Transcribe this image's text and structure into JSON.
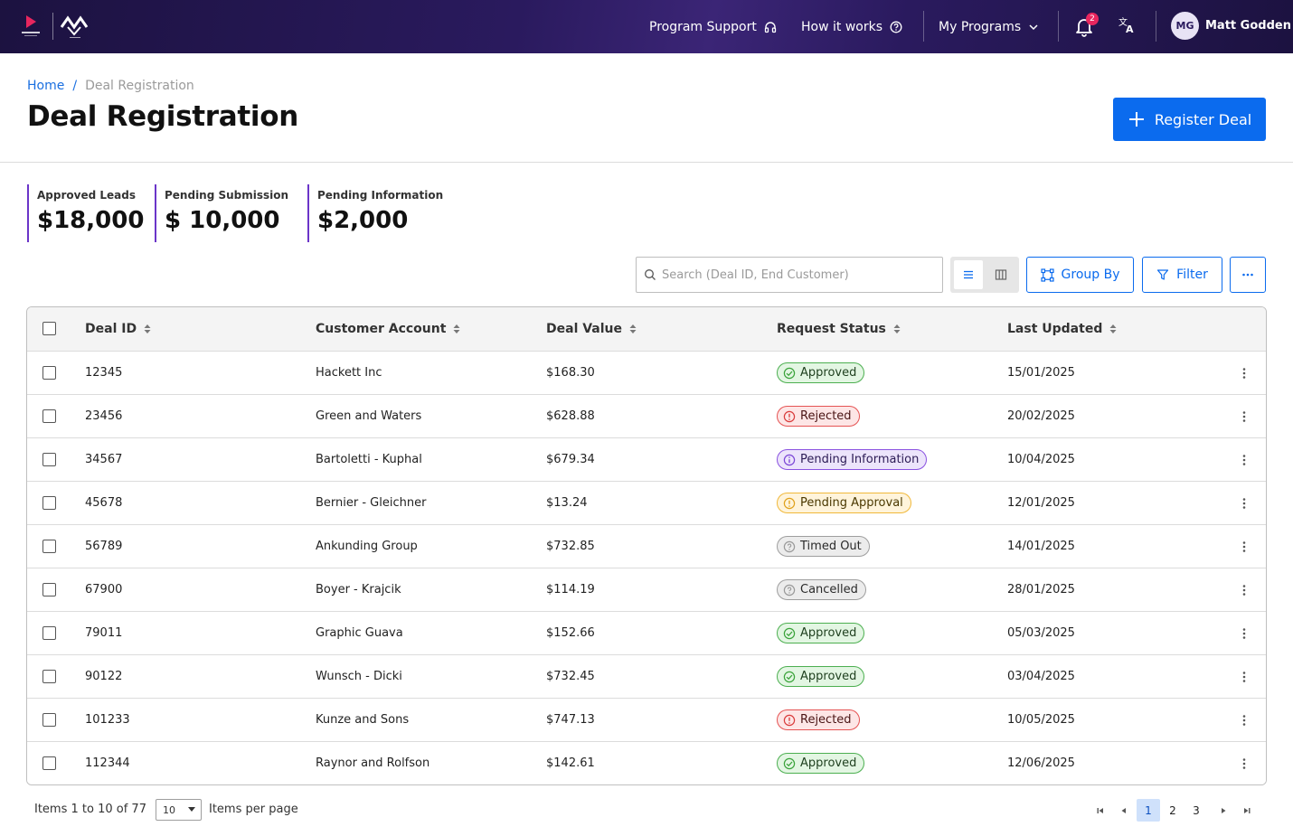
{
  "nav": {
    "program_support": "Program Support",
    "how_it_works": "How it works",
    "my_programs": "My Programs",
    "notification_count": "2",
    "avatar_initials": "MG",
    "user_name": "Matt Godden"
  },
  "breadcrumb": {
    "home": "Home",
    "separator": "/",
    "current": "Deal Registration"
  },
  "page_title": "Deal Registration",
  "register_button": "Register Deal",
  "stats": [
    {
      "label": "Approved Leads",
      "value": "$18,000"
    },
    {
      "label": "Pending Submission",
      "value": "$ 10,000"
    },
    {
      "label": "Pending Information",
      "value": "$2,000"
    }
  ],
  "toolbar": {
    "search_placeholder": "Search (Deal ID, End Customer)",
    "group_by": "Group By",
    "filter": "Filter"
  },
  "table": {
    "columns": [
      "Deal ID",
      "Customer Account",
      "Deal Value",
      "Request Status",
      "Last Updated"
    ],
    "rows": [
      {
        "id": "12345",
        "customer": "Hackett Inc",
        "value": "$168.30",
        "status": "Approved",
        "status_type": "approved",
        "updated": "15/01/2025"
      },
      {
        "id": "23456",
        "customer": "Green and Waters",
        "value": "$628.88",
        "status": "Rejected",
        "status_type": "rejected",
        "updated": "20/02/2025"
      },
      {
        "id": "34567",
        "customer": "Bartoletti - Kuphal",
        "value": "$679.34",
        "status": "Pending Information",
        "status_type": "info",
        "updated": "10/04/2025"
      },
      {
        "id": "45678",
        "customer": "Bernier - Gleichner",
        "value": "$13.24",
        "status": "Pending Approval",
        "status_type": "pending",
        "updated": "12/01/2025"
      },
      {
        "id": "56789",
        "customer": "Ankunding Group",
        "value": "$732.85",
        "status": "Timed Out",
        "status_type": "grey",
        "updated": "14/01/2025"
      },
      {
        "id": "67900",
        "customer": "Boyer - Krajcik",
        "value": "$114.19",
        "status": "Cancelled",
        "status_type": "grey",
        "updated": "28/01/2025"
      },
      {
        "id": "79011",
        "customer": "Graphic Guava",
        "value": "$152.66",
        "status": "Approved",
        "status_type": "approved",
        "updated": "05/03/2025"
      },
      {
        "id": "90122",
        "customer": "Wunsch - Dicki",
        "value": "$732.45",
        "status": "Approved",
        "status_type": "approved",
        "updated": "03/04/2025"
      },
      {
        "id": "101233",
        "customer": "Kunze and Sons",
        "value": "$747.13",
        "status": "Rejected",
        "status_type": "rejected",
        "updated": "10/05/2025"
      },
      {
        "id": "112344",
        "customer": "Raynor and Rolfson",
        "value": "$142.61",
        "status": "Approved",
        "status_type": "approved",
        "updated": "12/06/2025"
      }
    ]
  },
  "pagination": {
    "items_text": "Items 1 to 10 of 77",
    "per_page_value": "10",
    "per_page_label": "Items per page",
    "pages": [
      "1",
      "2",
      "3"
    ],
    "current_page": "1"
  },
  "colors": {
    "brand_dark": "#2a1a5e",
    "accent_blue": "#0b6bee",
    "stat_accent": "#6b35c9"
  }
}
